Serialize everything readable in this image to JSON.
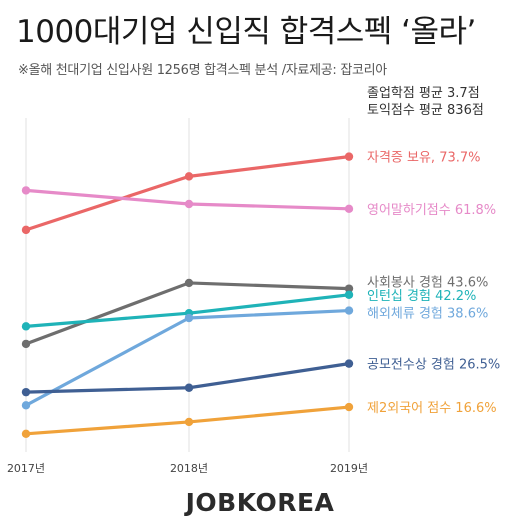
{
  "header": {
    "title": "1000대기업 신입직 합격스펙 ‘올라’",
    "subtitle": "※올해 천대기업 신입사원 1256명 합격스펙 분석 /자료제공: 잡코리아"
  },
  "footer": {
    "brand": "JOBKOREA"
  },
  "notes": [
    "졸업학점 평균 3.7점",
    "토익점수 평균 836점"
  ],
  "chart_data": {
    "type": "line",
    "x": [
      "2017년",
      "2018년",
      "2019년"
    ],
    "ylim": [
      10,
      80
    ],
    "grid": false,
    "series": [
      {
        "name": "자격증 보유",
        "values": [
          57.0,
          69.2,
          73.7
        ],
        "end_label": "자격증 보유, 73.7%",
        "color": "#ea6767"
      },
      {
        "name": "영어말하기점수",
        "values": [
          66.0,
          62.9,
          61.8
        ],
        "end_label": "영어말하기점수 61.8%",
        "color": "#e68ac8"
      },
      {
        "name": "사회봉사 경험",
        "values": [
          31.0,
          44.9,
          43.6
        ],
        "end_label": "사회봉사 경험 43.6%",
        "color": "#6e6e6e"
      },
      {
        "name": "인턴십 경험",
        "values": [
          35.0,
          38.0,
          42.2
        ],
        "end_label": "인턴십 경험 42.2%",
        "color": "#1fb3b8"
      },
      {
        "name": "해외체류 경험",
        "values": [
          17.0,
          36.9,
          38.6
        ],
        "end_label": "해외체류 경험 38.6%",
        "color": "#6fa8dc"
      },
      {
        "name": "공모전수상 경험",
        "values": [
          20.0,
          21.0,
          26.5
        ],
        "end_label": "공모전수상 경험 26.5%",
        "color": "#3f5f93"
      },
      {
        "name": "제2외국어 점수",
        "values": [
          10.5,
          13.2,
          16.6
        ],
        "end_label": "제2외국어 점수 16.6%",
        "color": "#f0a23a"
      }
    ]
  }
}
